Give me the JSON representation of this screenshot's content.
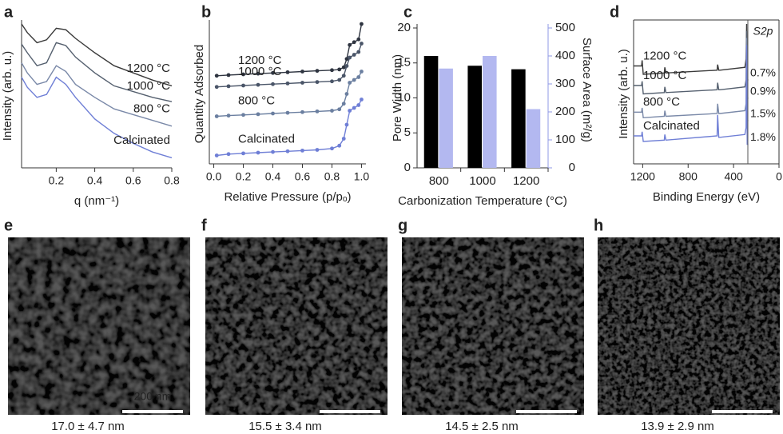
{
  "chart_data": [
    {
      "type": "line",
      "label": "a",
      "ylabel": "Intensity (arb. u.)",
      "xlabel": "q (nm⁻¹)",
      "x": [
        0.02,
        0.05,
        0.1,
        0.15,
        0.2,
        0.25,
        0.3,
        0.4,
        0.5,
        0.6,
        0.7,
        0.8
      ],
      "xlim": [
        0.02,
        0.8
      ],
      "xticks": [
        0.2,
        0.4,
        0.6,
        0.8
      ],
      "ylim": [
        0,
        10
      ],
      "series": [
        {
          "name": "1200 °C",
          "color": "#3a3a3a",
          "values": [
            10,
            9.4,
            8.7,
            8.9,
            9.7,
            9.6,
            9.0,
            8.0,
            7.1,
            6.6,
            6.1,
            5.7
          ]
        },
        {
          "name": "1000 °C",
          "color": "#55606f",
          "values": [
            8.6,
            8.0,
            7.1,
            7.3,
            8.7,
            8.5,
            7.7,
            6.6,
            5.7,
            5.3,
            4.9,
            4.6
          ]
        },
        {
          "name": "800 °C",
          "color": "#7a89a8",
          "values": [
            7.3,
            6.6,
            5.8,
            6.0,
            7.1,
            6.7,
            5.8,
            4.9,
            4.1,
            3.7,
            3.3,
            2.9
          ]
        },
        {
          "name": "Calcinated",
          "color": "#6f7fd6",
          "values": [
            6.3,
            5.6,
            4.9,
            5.1,
            6.3,
            5.8,
            4.9,
            3.4,
            2.4,
            1.7,
            1.1,
            0.7
          ]
        }
      ]
    },
    {
      "type": "line",
      "label": "b",
      "ylabel": "Quantity Adsorbed",
      "xlabel": "Relative Pressure (p/pₒ)",
      "markers": true,
      "x": [
        0.02,
        0.1,
        0.2,
        0.3,
        0.4,
        0.5,
        0.6,
        0.7,
        0.8,
        0.85,
        0.88,
        0.9,
        0.92,
        0.95,
        0.98,
        1.0
      ],
      "xlim": [
        -0.03,
        1.03
      ],
      "xticks": [
        {
          "value": 0,
          "label": "0.0"
        },
        0.2,
        0.4,
        0.6,
        0.8,
        {
          "value": 1,
          "label": "1.0"
        }
      ],
      "ylim": [
        0,
        10
      ],
      "series": [
        {
          "name": "1200 °C",
          "color": "#2e3440",
          "values": [
            6.3,
            6.35,
            6.4,
            6.45,
            6.5,
            6.55,
            6.6,
            6.65,
            6.7,
            6.75,
            6.9,
            7.5,
            8.5,
            8.7,
            8.9,
            10
          ]
        },
        {
          "name": "1000 °C",
          "color": "#4a5568",
          "values": [
            5.5,
            5.55,
            5.6,
            5.65,
            5.7,
            5.75,
            5.8,
            5.85,
            5.9,
            6.0,
            6.3,
            7.0,
            7.6,
            7.8,
            8.0,
            8.6
          ]
        },
        {
          "name": "800 °C",
          "color": "#6b7fa0",
          "values": [
            3.4,
            3.45,
            3.5,
            3.55,
            3.6,
            3.65,
            3.7,
            3.75,
            3.8,
            3.9,
            4.3,
            5.0,
            5.8,
            6.0,
            6.2,
            6.6
          ]
        },
        {
          "name": "Calcinated",
          "color": "#6f7fd6",
          "values": [
            0.6,
            0.7,
            0.75,
            0.8,
            0.85,
            0.9,
            0.95,
            1.0,
            1.1,
            1.3,
            1.8,
            2.8,
            3.8,
            4.0,
            4.2,
            4.6
          ]
        }
      ]
    },
    {
      "type": "bar",
      "label": "c",
      "ylabel": "Pore Width (nm)",
      "y2label": "Surface Area (m²/g)",
      "xlabel": "Carbonization Temperature (°C)",
      "categories": [
        "800",
        "1000",
        "1200"
      ],
      "ylim": [
        0,
        20
      ],
      "yticks": [
        0,
        5,
        10,
        15,
        20
      ],
      "y2lim": [
        0,
        500
      ],
      "y2ticks": [
        0,
        100,
        200,
        300,
        400,
        500
      ],
      "y2color": "#8f98e6",
      "series": [
        {
          "name": "Pore Width",
          "color": "#000000",
          "values": [
            16,
            14.6,
            14.1
          ]
        },
        {
          "name": "Surface Area",
          "color": "#b3b8f0",
          "axis": "y2",
          "values": [
            355,
            400,
            210
          ]
        }
      ]
    },
    {
      "type": "line",
      "label": "d",
      "ylabel": "Intensity (arb. u.)",
      "xlabel": "Binding Energy (eV)",
      "annotation_title": "S2p",
      "x": [
        1280,
        1210,
        1205,
        1195,
        1010,
        1005,
        995,
        545,
        540,
        530,
        520,
        300,
        290,
        285,
        280,
        270
      ],
      "xlim": [
        1280,
        0
      ],
      "xticks": [
        1200,
        800,
        400,
        0
      ],
      "ylim": [
        0,
        10
      ],
      "series": [
        {
          "name": "1200 °C",
          "note": "0.7%",
          "color": "#3a3a3a",
          "values": [
            7.0,
            7.0,
            7.4,
            6.4,
            6.5,
            6.9,
            6.5,
            6.7,
            7.1,
            6.7,
            6.7,
            6.9,
            7.5,
            10,
            6.0,
            6.0
          ]
        },
        {
          "name": "1000 °C",
          "note": "0.9%",
          "color": "#55606f",
          "values": [
            5.6,
            5.6,
            5.9,
            5.0,
            5.1,
            5.5,
            5.1,
            5.3,
            5.8,
            5.3,
            5.3,
            5.5,
            6.0,
            9.5,
            4.7,
            4.7
          ]
        },
        {
          "name": "800 °C",
          "note": "1.5%",
          "color": "#7a89a8",
          "values": [
            3.7,
            3.7,
            4.0,
            3.3,
            3.4,
            3.8,
            3.4,
            3.6,
            4.3,
            3.6,
            3.6,
            3.8,
            4.3,
            9.0,
            3.1,
            3.1
          ]
        },
        {
          "name": "Calcinated",
          "note": "1.8%",
          "color": "#6f7fd6",
          "values": [
            2.0,
            2.0,
            2.3,
            1.6,
            1.7,
            2.1,
            1.7,
            2.0,
            3.5,
            1.9,
            1.9,
            2.1,
            2.6,
            8.5,
            1.4,
            1.4
          ]
        }
      ]
    }
  ],
  "micrographs": [
    {
      "label": "e",
      "caption": "17.0 ± 4.7 nm",
      "scale_bar": "200 nm"
    },
    {
      "label": "f",
      "caption": "15.5 ± 3.4 nm"
    },
    {
      "label": "g",
      "caption": "14.5 ± 2.5 nm"
    },
    {
      "label": "h",
      "caption": "13.9 ± 2.9 nm"
    }
  ]
}
